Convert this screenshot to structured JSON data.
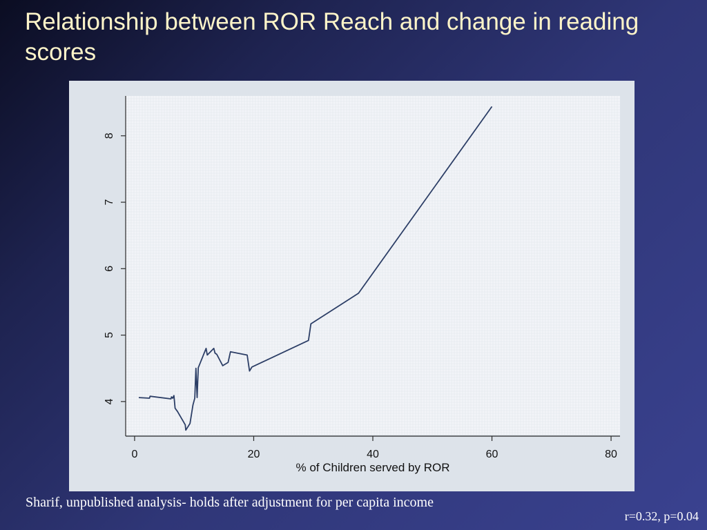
{
  "slide": {
    "title": "Relationship between ROR Reach and change in reading scores",
    "footnote": "Sharif, unpublished analysis- holds after adjustment for per capita income",
    "stat": "r=0.32, p=0.04"
  },
  "colors": {
    "background": "#2f3677",
    "title": "#fdf4c9",
    "panel": "#dde3ea",
    "plot_area": "#f2f4f8",
    "line": "#2c3e66"
  },
  "chart_data": {
    "type": "line",
    "title": "",
    "xlabel": "% of Children served by ROR",
    "ylabel": "",
    "xlim": [
      -1.5,
      81.5
    ],
    "ylim": [
      3.5,
      8.6
    ],
    "xticks": [
      0,
      20,
      40,
      60,
      80
    ],
    "yticks": [
      4,
      5,
      6,
      7,
      8
    ],
    "grid": true,
    "series": [
      {
        "x": [
          0.7,
          2.5,
          2.6,
          6.1,
          6.2,
          6.4,
          6.6,
          6.8,
          7.2,
          8.5,
          8.6,
          9.3,
          9.8,
          10.1,
          10.3,
          10.5,
          10.7,
          12.0,
          12.2,
          13.3,
          13.5,
          13.8,
          14.8,
          15.7,
          16.1,
          18.9,
          19.3,
          19.7,
          29.2,
          29.6,
          37.6,
          60.0
        ],
        "y": [
          4.06,
          4.05,
          4.08,
          4.04,
          4.07,
          4.05,
          4.09,
          3.9,
          3.85,
          3.65,
          3.57,
          3.67,
          3.95,
          4.05,
          4.5,
          4.06,
          4.51,
          4.8,
          4.7,
          4.8,
          4.73,
          4.71,
          4.54,
          4.59,
          4.75,
          4.7,
          4.46,
          4.52,
          4.92,
          5.17,
          5.63,
          8.44
        ]
      }
    ]
  }
}
